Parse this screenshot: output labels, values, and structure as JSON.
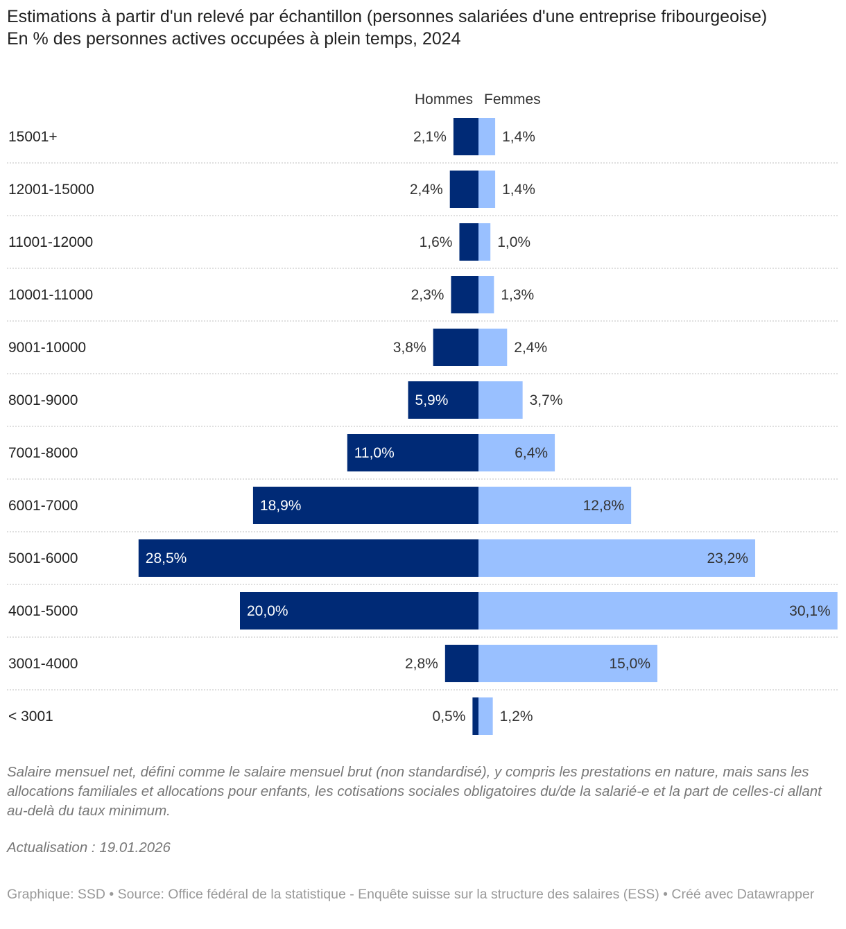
{
  "header": {
    "title": "Estimations à partir d'un relevé par échantillon (personnes salariées d'une entreprise fribourgeoise)",
    "subtitle": "En % des personnes actives occupées à plein temps, 2024"
  },
  "colors": {
    "men": "#002a76",
    "women": "#99c0ff",
    "divider": "#cccccc"
  },
  "chart_data": {
    "type": "bar",
    "orientation": "horizontal",
    "layout": "diverging",
    "categories": [
      "15001+",
      "12001-15000",
      "11001-12000",
      "10001-11000",
      "9001-10000",
      "8001-9000",
      "7001-8000",
      "6001-7000",
      "5001-6000",
      "4001-5000",
      "3001-4000",
      "< 3001"
    ],
    "series": [
      {
        "name": "Hommes",
        "values": [
          2.1,
          2.4,
          1.6,
          2.3,
          3.8,
          5.9,
          11.0,
          18.9,
          28.5,
          20.0,
          2.8,
          0.5
        ]
      },
      {
        "name": "Femmes",
        "values": [
          1.4,
          1.4,
          1.0,
          1.3,
          2.4,
          3.7,
          6.4,
          12.8,
          23.2,
          30.1,
          15.0,
          1.2
        ]
      }
    ],
    "labels": {
      "Hommes": [
        "2,1%",
        "2,4%",
        "1,6%",
        "2,3%",
        "3,8%",
        "5,9%",
        "11,0%",
        "18,9%",
        "28,5%",
        "20,0%",
        "2,8%",
        "0,5%"
      ],
      "Femmes": [
        "1,4%",
        "1,4%",
        "1,0%",
        "1,3%",
        "2,4%",
        "3,7%",
        "6,4%",
        "12,8%",
        "23,2%",
        "30,1%",
        "15,0%",
        "1,2%"
      ]
    },
    "unit": "%",
    "legend_position": "top-center",
    "grid": false
  },
  "notes": "Salaire mensuel net, défini comme le salaire mensuel brut (non standardisé), y compris les prestations en nature, mais sans les allocations familiales et allocations pour enfants, les cotisations sociales obligatoires du/de la salarié-e et la part de celles-ci allant au-delà du taux minimum.",
  "update": "Actualisation : 19.01.2026",
  "footer": "Graphique: SSD • Source: Office fédéral de la statistique - Enquête suisse sur la structure des salaires (ESS) • Créé avec Datawrapper"
}
